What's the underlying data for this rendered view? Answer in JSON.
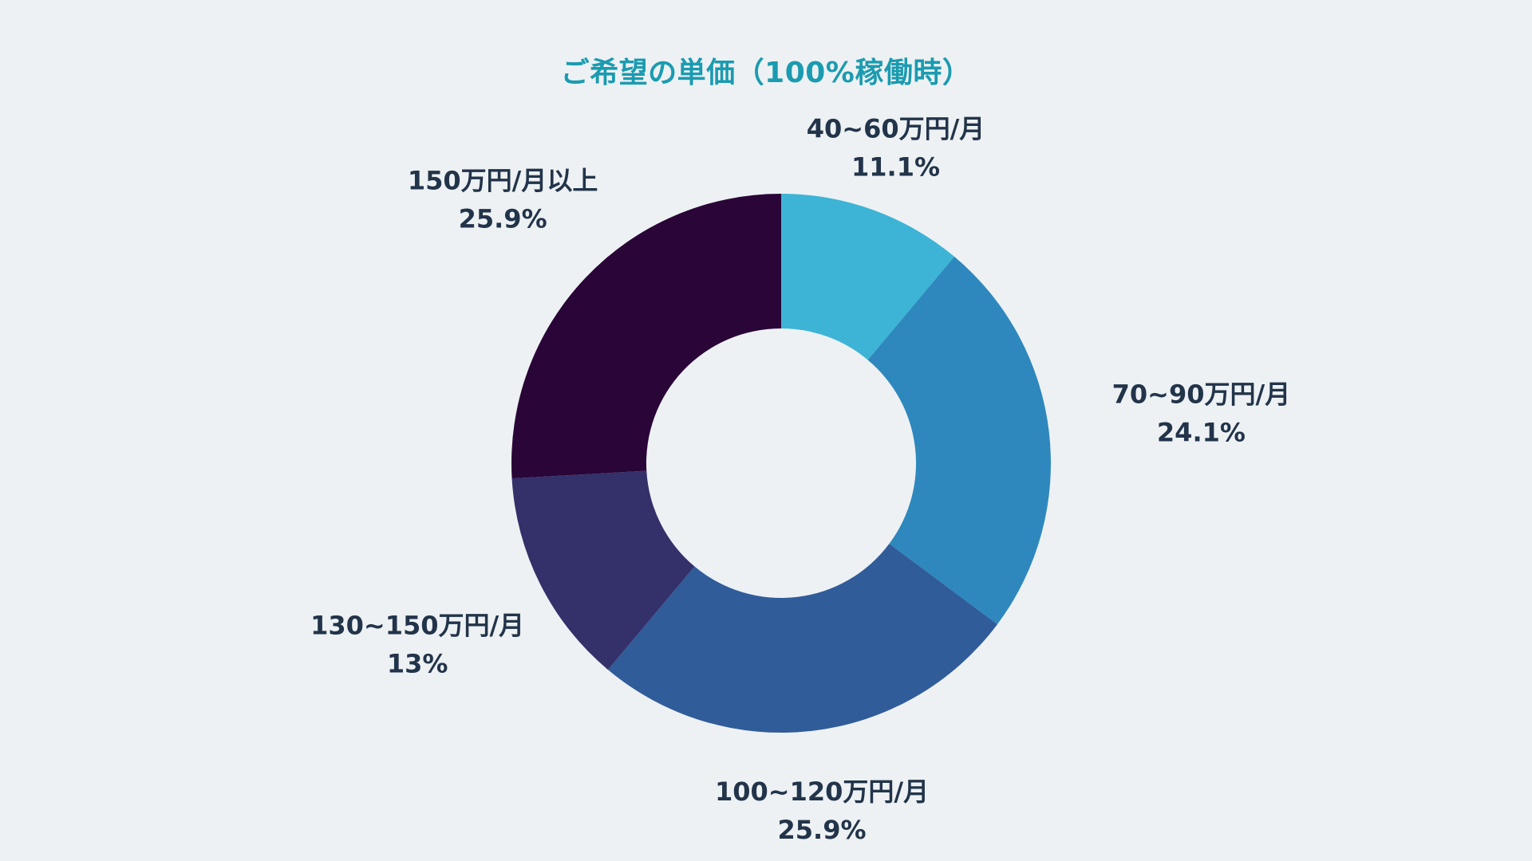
{
  "chart_data": {
    "type": "pie",
    "donut": true,
    "title": "ご希望の単価（100%稼働時）",
    "categories": [
      "40~60万円/月",
      "70~90万円/月",
      "100~120万円/月",
      "130~150万円/月",
      "150万円/月以上"
    ],
    "values": [
      11.1,
      24.1,
      25.9,
      13,
      25.9
    ],
    "value_labels": [
      "11.1%",
      "24.1%",
      "25.9%",
      "13%",
      "25.9%"
    ],
    "colors": [
      "#3db4d6",
      "#2e88bd",
      "#305c99",
      "#33306a",
      "#2a0537"
    ],
    "start": "12 o'clock",
    "direction": "clockwise",
    "legend": "none"
  }
}
